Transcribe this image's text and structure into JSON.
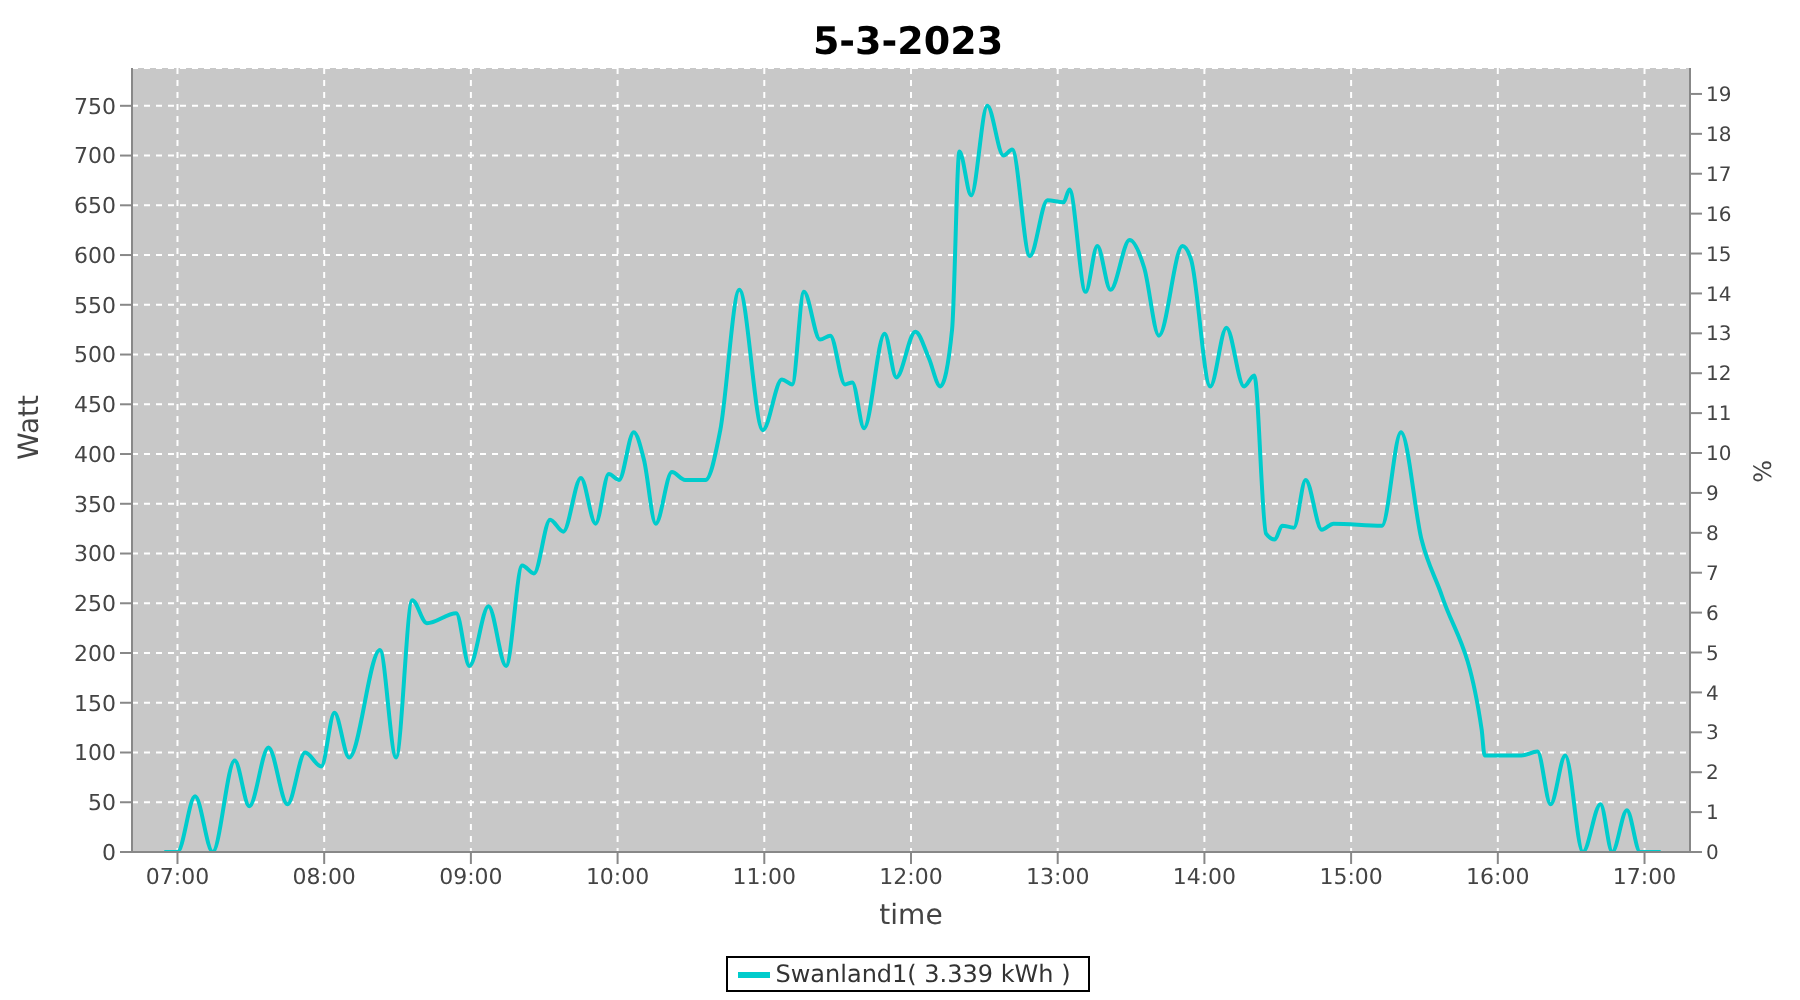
{
  "chart_data": {
    "type": "line",
    "title": "5-3-2023",
    "xlabel": "time",
    "ylabel": "Watt",
    "y2label": "%",
    "x": [
      6.91,
      7.0,
      7.12,
      7.24,
      7.39,
      7.49,
      7.62,
      7.75,
      7.87,
      7.98,
      8.07,
      8.17,
      8.38,
      8.49,
      8.6,
      8.7,
      8.9,
      8.99,
      9.12,
      9.24,
      9.35,
      9.43,
      9.54,
      9.63,
      9.75,
      9.85,
      9.94,
      10.01,
      10.11,
      10.18,
      10.26,
      10.37,
      10.46,
      10.6,
      10.7,
      10.83,
      10.99,
      11.12,
      11.19,
      11.27,
      11.38,
      11.45,
      11.55,
      11.6,
      11.68,
      11.82,
      11.9,
      12.03,
      12.12,
      12.2,
      12.28,
      12.33,
      12.41,
      12.52,
      12.63,
      12.69,
      12.81,
      12.93,
      13.04,
      13.08,
      13.19,
      13.27,
      13.36,
      13.49,
      13.59,
      13.69,
      13.85,
      13.91,
      14.04,
      14.15,
      14.27,
      14.34,
      14.42,
      14.48,
      14.53,
      14.61,
      14.69,
      14.8,
      14.88,
      15.21,
      15.34,
      15.48,
      15.62,
      15.89,
      15.91,
      16.16,
      16.27,
      16.36,
      16.46,
      16.58,
      16.7,
      16.78,
      16.88,
      16.97,
      17.11
    ],
    "series": [
      {
        "name": "Swanland1( 3.339 kWh )",
        "color": "#00cccc",
        "values": [
          0,
          0,
          56,
          0,
          92,
          46,
          105,
          48,
          100,
          86,
          140,
          95,
          203,
          95,
          253,
          230,
          240,
          187,
          247,
          187,
          288,
          280,
          334,
          322,
          376,
          330,
          380,
          374,
          422,
          394,
          330,
          382,
          374,
          374,
          424,
          565,
          424,
          475,
          470,
          563,
          515,
          519,
          470,
          472,
          426,
          521,
          477,
          523,
          497,
          468,
          525,
          704,
          660,
          750,
          700,
          706,
          599,
          655,
          653,
          666,
          563,
          609,
          565,
          615,
          587,
          519,
          609,
          595,
          468,
          527,
          468,
          479,
          320,
          314,
          328,
          326,
          374,
          324,
          330,
          328,
          422,
          314,
          257,
          123,
          97,
          97,
          101,
          48,
          97,
          0,
          48,
          0,
          42,
          0,
          0
        ]
      }
    ],
    "xlim": [
      6.69,
      17.31
    ],
    "xticks": [
      {
        "value": 7,
        "label": "07:00"
      },
      {
        "value": 8,
        "label": "08:00"
      },
      {
        "value": 9,
        "label": "09:00"
      },
      {
        "value": 10,
        "label": "10:00"
      },
      {
        "value": 11,
        "label": "11:00"
      },
      {
        "value": 12,
        "label": "12:00"
      },
      {
        "value": 13,
        "label": "13:00"
      },
      {
        "value": 14,
        "label": "14:00"
      },
      {
        "value": 15,
        "label": "15:00"
      },
      {
        "value": 16,
        "label": "16:00"
      },
      {
        "value": 17,
        "label": "17:00"
      }
    ],
    "ylim": [
      0,
      788
    ],
    "yticks": [
      0,
      50,
      100,
      150,
      200,
      250,
      300,
      350,
      400,
      450,
      500,
      550,
      600,
      650,
      700,
      750
    ],
    "y2lim": [
      0,
      19.65
    ],
    "y2ticks": [
      0,
      1,
      2,
      3,
      4,
      5,
      6,
      7,
      8,
      9,
      10,
      11,
      12,
      13,
      14,
      15,
      16,
      17,
      18,
      19
    ],
    "grid": true,
    "legend": "bottom",
    "marker": "none",
    "line_style": "solid"
  }
}
